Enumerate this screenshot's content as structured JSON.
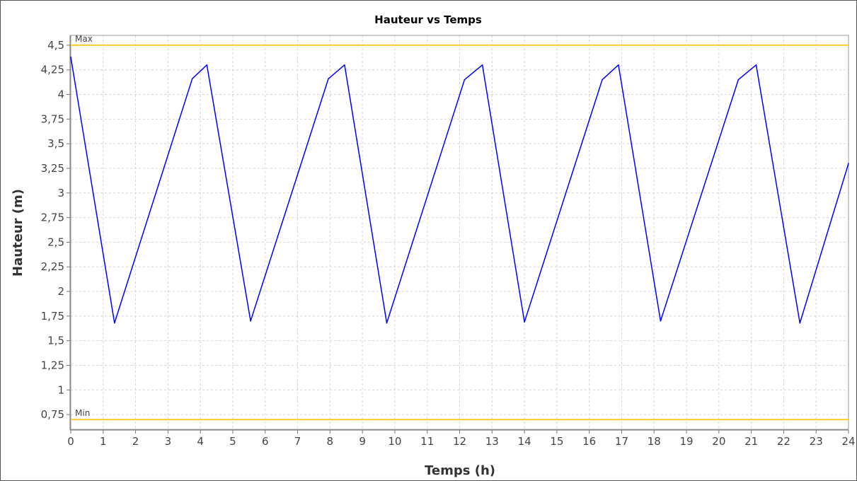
{
  "colors": {
    "series": "#0000ff",
    "threshold": "#ffcc33",
    "grid": "#d4d4d4",
    "axis": "#777777",
    "plot_border": "#999999"
  },
  "chart_data": {
    "type": "line",
    "title": "Hauteur vs Temps",
    "xlabel": "Temps (h)",
    "ylabel": "Hauteur (m)",
    "xlim": [
      0,
      24
    ],
    "ylim": [
      0.6,
      4.6
    ],
    "grid": true,
    "x_ticks": [
      "0",
      "1",
      "2",
      "3",
      "4",
      "5",
      "6",
      "7",
      "8",
      "9",
      "10",
      "11",
      "12",
      "13",
      "14",
      "15",
      "16",
      "17",
      "18",
      "19",
      "20",
      "21",
      "22",
      "23",
      "24"
    ],
    "y_ticks": [
      "0,75",
      "1",
      "1,25",
      "1,5",
      "1,75",
      "2",
      "2,25",
      "2,5",
      "2,75",
      "3",
      "3,25",
      "3,5",
      "3,75",
      "4",
      "4,25",
      "4,5"
    ],
    "markers": [
      {
        "label": "Max",
        "value": 4.5
      },
      {
        "label": "Min",
        "value": 0.7
      }
    ],
    "series": [
      {
        "x": [
          0,
          1.35,
          3.75,
          4.2,
          5.55,
          7.95,
          8.45,
          9.75,
          12.15,
          12.7,
          14.0,
          16.4,
          16.9,
          18.2,
          20.6,
          21.15,
          22.5,
          24.0
        ],
        "y": [
          4.38,
          1.68,
          4.16,
          4.3,
          1.7,
          4.16,
          4.3,
          1.68,
          4.15,
          4.3,
          1.69,
          4.15,
          4.3,
          1.7,
          4.15,
          4.3,
          1.68,
          3.3
        ]
      }
    ]
  }
}
